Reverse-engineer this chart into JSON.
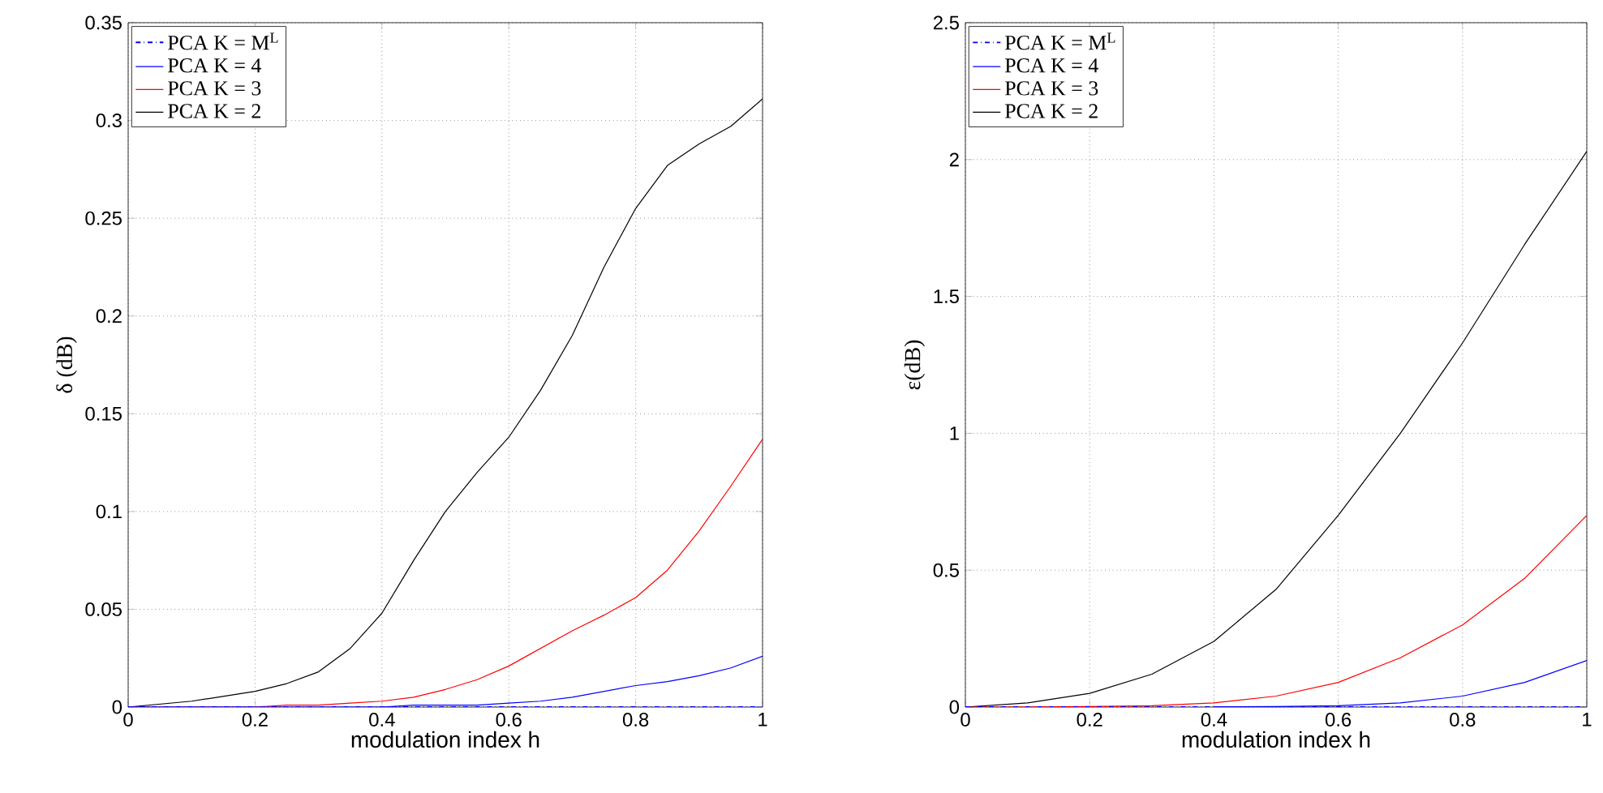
{
  "chart_data": [
    {
      "type": "line",
      "xlabel": "modulation index h",
      "ylabel": "δ (dB)",
      "xlim": [
        0,
        1
      ],
      "ylim": [
        0,
        0.35
      ],
      "xticks": [
        0,
        0.2,
        0.4,
        0.6,
        0.8,
        1
      ],
      "yticks": [
        0,
        0.05,
        0.1,
        0.15,
        0.2,
        0.25,
        0.3,
        0.35
      ],
      "grid": true,
      "legend": "top left",
      "x": [
        0,
        0.1,
        0.2,
        0.25,
        0.3,
        0.35,
        0.4,
        0.45,
        0.5,
        0.55,
        0.6,
        0.65,
        0.7,
        0.75,
        0.8,
        0.85,
        0.9,
        0.95,
        1
      ],
      "series": [
        {
          "name": "PCA K = M$^{L}$",
          "color": "#0000ff",
          "line_style": "dashdot",
          "values": [
            0,
            0,
            0,
            0,
            0,
            0,
            0,
            0,
            0,
            0,
            0,
            0,
            0,
            0,
            0,
            0,
            0,
            0,
            0
          ]
        },
        {
          "name": "PCA K = 4",
          "color": "#0000ff",
          "line_style": "solid",
          "values": [
            0,
            0,
            0,
            0,
            0,
            0,
            0,
            0.001,
            0.001,
            0.001,
            0.002,
            0.003,
            0.005,
            0.008,
            0.011,
            0.013,
            0.016,
            0.02,
            0.026
          ]
        },
        {
          "name": "PCA K = 3",
          "color": "#ff0000",
          "line_style": "solid",
          "values": [
            0,
            0,
            0,
            0.001,
            0.001,
            0.002,
            0.003,
            0.005,
            0.009,
            0.014,
            0.021,
            0.03,
            0.039,
            0.047,
            0.056,
            0.07,
            0.09,
            0.113,
            0.137
          ]
        },
        {
          "name": "PCA K = 2",
          "color": "#000000",
          "line_style": "solid",
          "values": [
            0,
            0.003,
            0.008,
            0.012,
            0.018,
            0.03,
            0.048,
            0.075,
            0.1,
            0.12,
            0.138,
            0.162,
            0.19,
            0.225,
            0.255,
            0.277,
            0.288,
            0.297,
            0.311
          ]
        }
      ]
    },
    {
      "type": "line",
      "xlabel": "modulation index h",
      "ylabel": "ε(dB)",
      "xlim": [
        0,
        1
      ],
      "ylim": [
        0,
        2.5
      ],
      "xticks": [
        0,
        0.2,
        0.4,
        0.6,
        0.8,
        1
      ],
      "yticks": [
        0,
        0.5,
        1,
        1.5,
        2,
        2.5
      ],
      "grid": true,
      "legend": "top left",
      "x": [
        0,
        0.1,
        0.2,
        0.3,
        0.4,
        0.5,
        0.6,
        0.7,
        0.8,
        0.9,
        1
      ],
      "series": [
        {
          "name": "PCA K = M$^{L}$",
          "color": "#0000ff",
          "line_style": "dashdot",
          "values": [
            0,
            0,
            0,
            0,
            0,
            0,
            0,
            0,
            0,
            0,
            0
          ]
        },
        {
          "name": "PCA K = 4",
          "color": "#0000ff",
          "line_style": "solid",
          "values": [
            null,
            null,
            null,
            null,
            0.001,
            0.002,
            0.005,
            0.015,
            0.04,
            0.09,
            0.17
          ]
        },
        {
          "name": "PCA K = 3",
          "color": "#ff0000",
          "line_style": "solid",
          "values": [
            0,
            0,
            0.002,
            0.005,
            0.015,
            0.04,
            0.09,
            0.18,
            0.3,
            0.47,
            0.7
          ]
        },
        {
          "name": "PCA K = 2",
          "color": "#000000",
          "line_style": "solid",
          "values": [
            0,
            0.015,
            0.05,
            0.12,
            0.24,
            0.43,
            0.7,
            1.0,
            1.33,
            1.69,
            2.03
          ]
        }
      ]
    }
  ]
}
